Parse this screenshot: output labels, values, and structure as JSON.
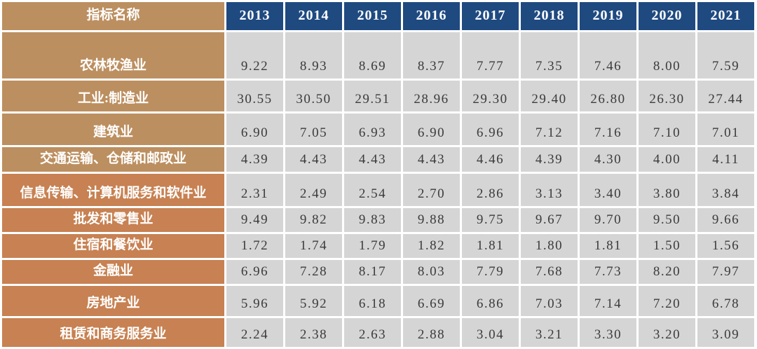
{
  "colors": {
    "tan": "#BC8F60",
    "orange": "#C78152",
    "header_blue": "#1F4A80",
    "cell_gray": "#D5D5D5",
    "value_text": "#3B3B3B",
    "separator": "#FFFFFF"
  },
  "table": {
    "header": {
      "indicator_label": "指标名称",
      "years": [
        "2013",
        "2014",
        "2015",
        "2016",
        "2017",
        "2018",
        "2019",
        "2020",
        "2021"
      ]
    },
    "rows": [
      {
        "label": "农林牧渔业",
        "label_tone": "tan",
        "values": [
          "9.22",
          "8.93",
          "8.69",
          "8.37",
          "7.77",
          "7.35",
          "7.46",
          "8.00",
          "7.59"
        ]
      },
      {
        "label": "工业:制造业",
        "label_tone": "tan",
        "values": [
          "30.55",
          "30.50",
          "29.51",
          "28.96",
          "29.30",
          "29.40",
          "26.80",
          "26.30",
          "27.44"
        ]
      },
      {
        "label": "建筑业",
        "label_tone": "tan",
        "values": [
          "6.90",
          "7.05",
          "6.93",
          "6.90",
          "6.96",
          "7.12",
          "7.16",
          "7.10",
          "7.01"
        ]
      },
      {
        "label": "交通运输、仓储和邮政业",
        "label_tone": "tan",
        "values": [
          "4.39",
          "4.43",
          "4.43",
          "4.43",
          "4.46",
          "4.39",
          "4.30",
          "4.00",
          "4.11"
        ]
      },
      {
        "label": "信息传输、计算机服务和软件业",
        "label_tone": "orange",
        "values": [
          "2.31",
          "2.49",
          "2.54",
          "2.70",
          "2.86",
          "3.13",
          "3.40",
          "3.80",
          "3.84"
        ]
      },
      {
        "label": "批发和零售业",
        "label_tone": "orange",
        "values": [
          "9.49",
          "9.82",
          "9.83",
          "9.88",
          "9.75",
          "9.67",
          "9.70",
          "9.50",
          "9.66"
        ]
      },
      {
        "label": "住宿和餐饮业",
        "label_tone": "orange",
        "values": [
          "1.72",
          "1.74",
          "1.79",
          "1.82",
          "1.81",
          "1.80",
          "1.81",
          "1.50",
          "1.56"
        ]
      },
      {
        "label": "金融业",
        "label_tone": "orange",
        "values": [
          "6.96",
          "7.28",
          "8.17",
          "8.03",
          "7.79",
          "7.68",
          "7.73",
          "8.20",
          "7.97"
        ]
      },
      {
        "label": "房地产业",
        "label_tone": "orange",
        "values": [
          "5.96",
          "5.92",
          "6.18",
          "6.69",
          "6.86",
          "7.03",
          "7.14",
          "7.20",
          "6.78"
        ]
      },
      {
        "label": "租赁和商务服务业",
        "label_tone": "orange",
        "values": [
          "2.24",
          "2.38",
          "2.63",
          "2.88",
          "3.04",
          "3.21",
          "3.30",
          "3.20",
          "3.09"
        ]
      }
    ]
  },
  "chart_data": {
    "type": "table",
    "columns": [
      "指标名称",
      "2013",
      "2014",
      "2015",
      "2016",
      "2017",
      "2018",
      "2019",
      "2020",
      "2021"
    ],
    "rows": [
      [
        "农林牧渔业",
        9.22,
        8.93,
        8.69,
        8.37,
        7.77,
        7.35,
        7.46,
        8.0,
        7.59
      ],
      [
        "工业:制造业",
        30.55,
        30.5,
        29.51,
        28.96,
        29.3,
        29.4,
        26.8,
        26.3,
        27.44
      ],
      [
        "建筑业",
        6.9,
        7.05,
        6.93,
        6.9,
        6.96,
        7.12,
        7.16,
        7.1,
        7.01
      ],
      [
        "交通运输、仓储和邮政业",
        4.39,
        4.43,
        4.43,
        4.43,
        4.46,
        4.39,
        4.3,
        4.0,
        4.11
      ],
      [
        "信息传输、计算机服务和软件业",
        2.31,
        2.49,
        2.54,
        2.7,
        2.86,
        3.13,
        3.4,
        3.8,
        3.84
      ],
      [
        "批发和零售业",
        9.49,
        9.82,
        9.83,
        9.88,
        9.75,
        9.67,
        9.7,
        9.5,
        9.66
      ],
      [
        "住宿和餐饮业",
        1.72,
        1.74,
        1.79,
        1.82,
        1.81,
        1.8,
        1.81,
        1.5,
        1.56
      ],
      [
        "金融业",
        6.96,
        7.28,
        8.17,
        8.03,
        7.79,
        7.68,
        7.73,
        8.2,
        7.97
      ],
      [
        "房地产业",
        5.96,
        5.92,
        6.18,
        6.69,
        6.86,
        7.03,
        7.14,
        7.2,
        6.78
      ],
      [
        "租赁和商务服务业",
        2.24,
        2.38,
        2.63,
        2.88,
        3.04,
        3.21,
        3.3,
        3.2,
        3.09
      ]
    ]
  }
}
